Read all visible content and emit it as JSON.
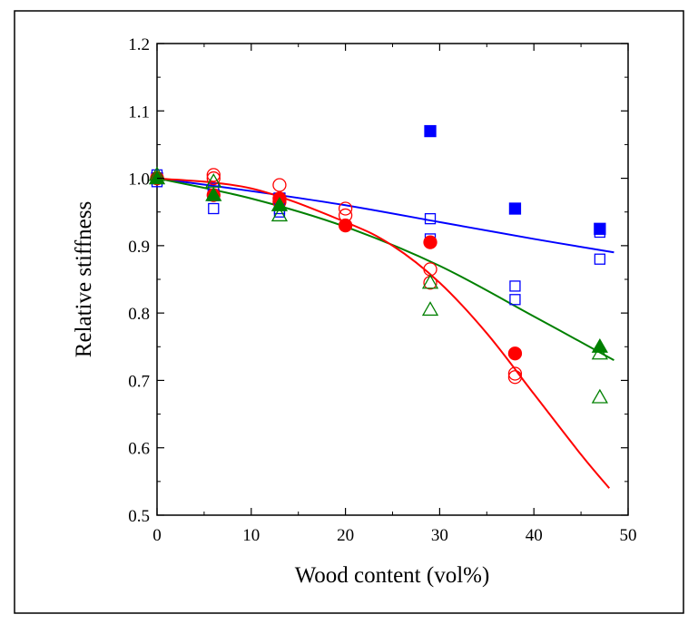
{
  "chart_data": {
    "type": "scatter",
    "title": "",
    "xlabel": "Wood content (vol%)",
    "ylabel": "Relative stiffness",
    "xlim": [
      0,
      50
    ],
    "ylim": [
      0.5,
      1.2
    ],
    "xticks": [
      0,
      10,
      20,
      30,
      40,
      50
    ],
    "xtick_labels": [
      "0",
      "10",
      "20",
      "30",
      "40",
      "50"
    ],
    "yticks": [
      0.5,
      0.6,
      0.7,
      0.8,
      0.9,
      1.0,
      1.1,
      1.2
    ],
    "ytick_labels": [
      "0.5",
      "0.6",
      "0.7",
      "0.8",
      "0.9",
      "1.0",
      "1.1",
      "1.2"
    ],
    "grid": false,
    "series": [
      {
        "color": "#0000ff",
        "marker": "square",
        "filled": true,
        "points": [
          [
            0,
            1.0
          ],
          [
            6,
            0.975
          ],
          [
            13,
            0.97
          ],
          [
            29,
            1.07
          ],
          [
            38,
            0.955
          ],
          [
            47,
            0.925
          ]
        ]
      },
      {
        "color": "#0000ff",
        "marker": "square",
        "filled": false,
        "points": [
          [
            0,
            1.005
          ],
          [
            0,
            0.995
          ],
          [
            6,
            0.955
          ],
          [
            6,
            0.985
          ],
          [
            13,
            0.95
          ],
          [
            13,
            0.955
          ],
          [
            13,
            0.97
          ],
          [
            29,
            0.94
          ],
          [
            29,
            0.91
          ],
          [
            38,
            0.84
          ],
          [
            38,
            0.82
          ],
          [
            47,
            0.92
          ],
          [
            47,
            0.88
          ]
        ]
      },
      {
        "color": "#ff0000",
        "marker": "circle",
        "filled": true,
        "points": [
          [
            0,
            1.0
          ],
          [
            6,
            0.975
          ],
          [
            13,
            0.97
          ],
          [
            20,
            0.93
          ],
          [
            29,
            0.905
          ],
          [
            38,
            0.74
          ]
        ]
      },
      {
        "color": "#ff0000",
        "marker": "circle",
        "filled": false,
        "points": [
          [
            0,
            1.0
          ],
          [
            6,
            1.005
          ],
          [
            6,
            1.0
          ],
          [
            13,
            0.99
          ],
          [
            13,
            0.965
          ],
          [
            20,
            0.955
          ],
          [
            20,
            0.945
          ],
          [
            29,
            0.865
          ],
          [
            29,
            0.845
          ],
          [
            38,
            0.71
          ],
          [
            38,
            0.705
          ]
        ]
      },
      {
        "color": "#008000",
        "marker": "triangle",
        "filled": true,
        "points": [
          [
            0,
            1.0
          ],
          [
            6,
            0.975
          ],
          [
            13,
            0.96
          ],
          [
            47,
            0.75
          ]
        ]
      },
      {
        "color": "#008000",
        "marker": "triangle",
        "filled": false,
        "points": [
          [
            0,
            1.005
          ],
          [
            6,
            0.995
          ],
          [
            13,
            0.945
          ],
          [
            29,
            0.845
          ],
          [
            29,
            0.805
          ],
          [
            47,
            0.74
          ],
          [
            47,
            0.675
          ]
        ]
      }
    ],
    "fit_curves": [
      {
        "color": "#0000ff",
        "points": [
          [
            0,
            1.0
          ],
          [
            10,
            0.981
          ],
          [
            20,
            0.96
          ],
          [
            30,
            0.935
          ],
          [
            40,
            0.91
          ],
          [
            48.5,
            0.89
          ]
        ]
      },
      {
        "color": "#008000",
        "points": [
          [
            0,
            1.0
          ],
          [
            10,
            0.97
          ],
          [
            20,
            0.928
          ],
          [
            30,
            0.87
          ],
          [
            40,
            0.795
          ],
          [
            48.5,
            0.73
          ]
        ]
      },
      {
        "color": "#ff0000",
        "points": [
          [
            0,
            1.0
          ],
          [
            10,
            0.985
          ],
          [
            20,
            0.935
          ],
          [
            25,
            0.9
          ],
          [
            30,
            0.845
          ],
          [
            35,
            0.77
          ],
          [
            40,
            0.68
          ],
          [
            45,
            0.59
          ],
          [
            48,
            0.54
          ]
        ]
      }
    ]
  }
}
